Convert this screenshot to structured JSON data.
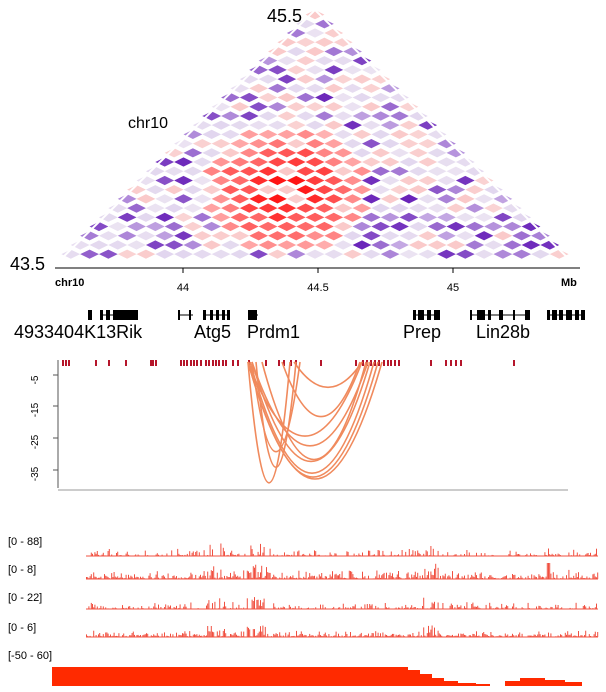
{
  "heatmap": {
    "top_label": "45.5",
    "left_label": "43.5",
    "chrom_label": "chr10"
  },
  "axis": {
    "chrom": "chr10",
    "unit": "Mb",
    "ticks": [
      {
        "label": "44",
        "value": 44.0
      },
      {
        "label": "44.5",
        "value": 44.5
      },
      {
        "label": "45",
        "value": 45.0
      }
    ]
  },
  "genes": [
    {
      "name": "4933404K13Rik"
    },
    {
      "name": "Atg5"
    },
    {
      "name": "Prdm1"
    },
    {
      "name": "Prep"
    },
    {
      "name": "Lin28b"
    }
  ],
  "arc_track": {
    "y_ticks": [
      "-5",
      "-15",
      "-25",
      "-35"
    ]
  },
  "signal_tracks": [
    {
      "range": "[0 - 88]"
    },
    {
      "range": "[0 - 8]"
    },
    {
      "range": "[0 - 22]"
    },
    {
      "range": "[0 - 6]"
    },
    {
      "range": "[-50 - 60]"
    }
  ],
  "colors": {
    "heat_hot": "#ff0000",
    "heat_cold": "#6a1b9a",
    "arc": "#f08a5d",
    "signal": "#f05040",
    "bar_track": "#ff2a00",
    "anchor": "#b5162b",
    "gene": "#000000"
  }
}
